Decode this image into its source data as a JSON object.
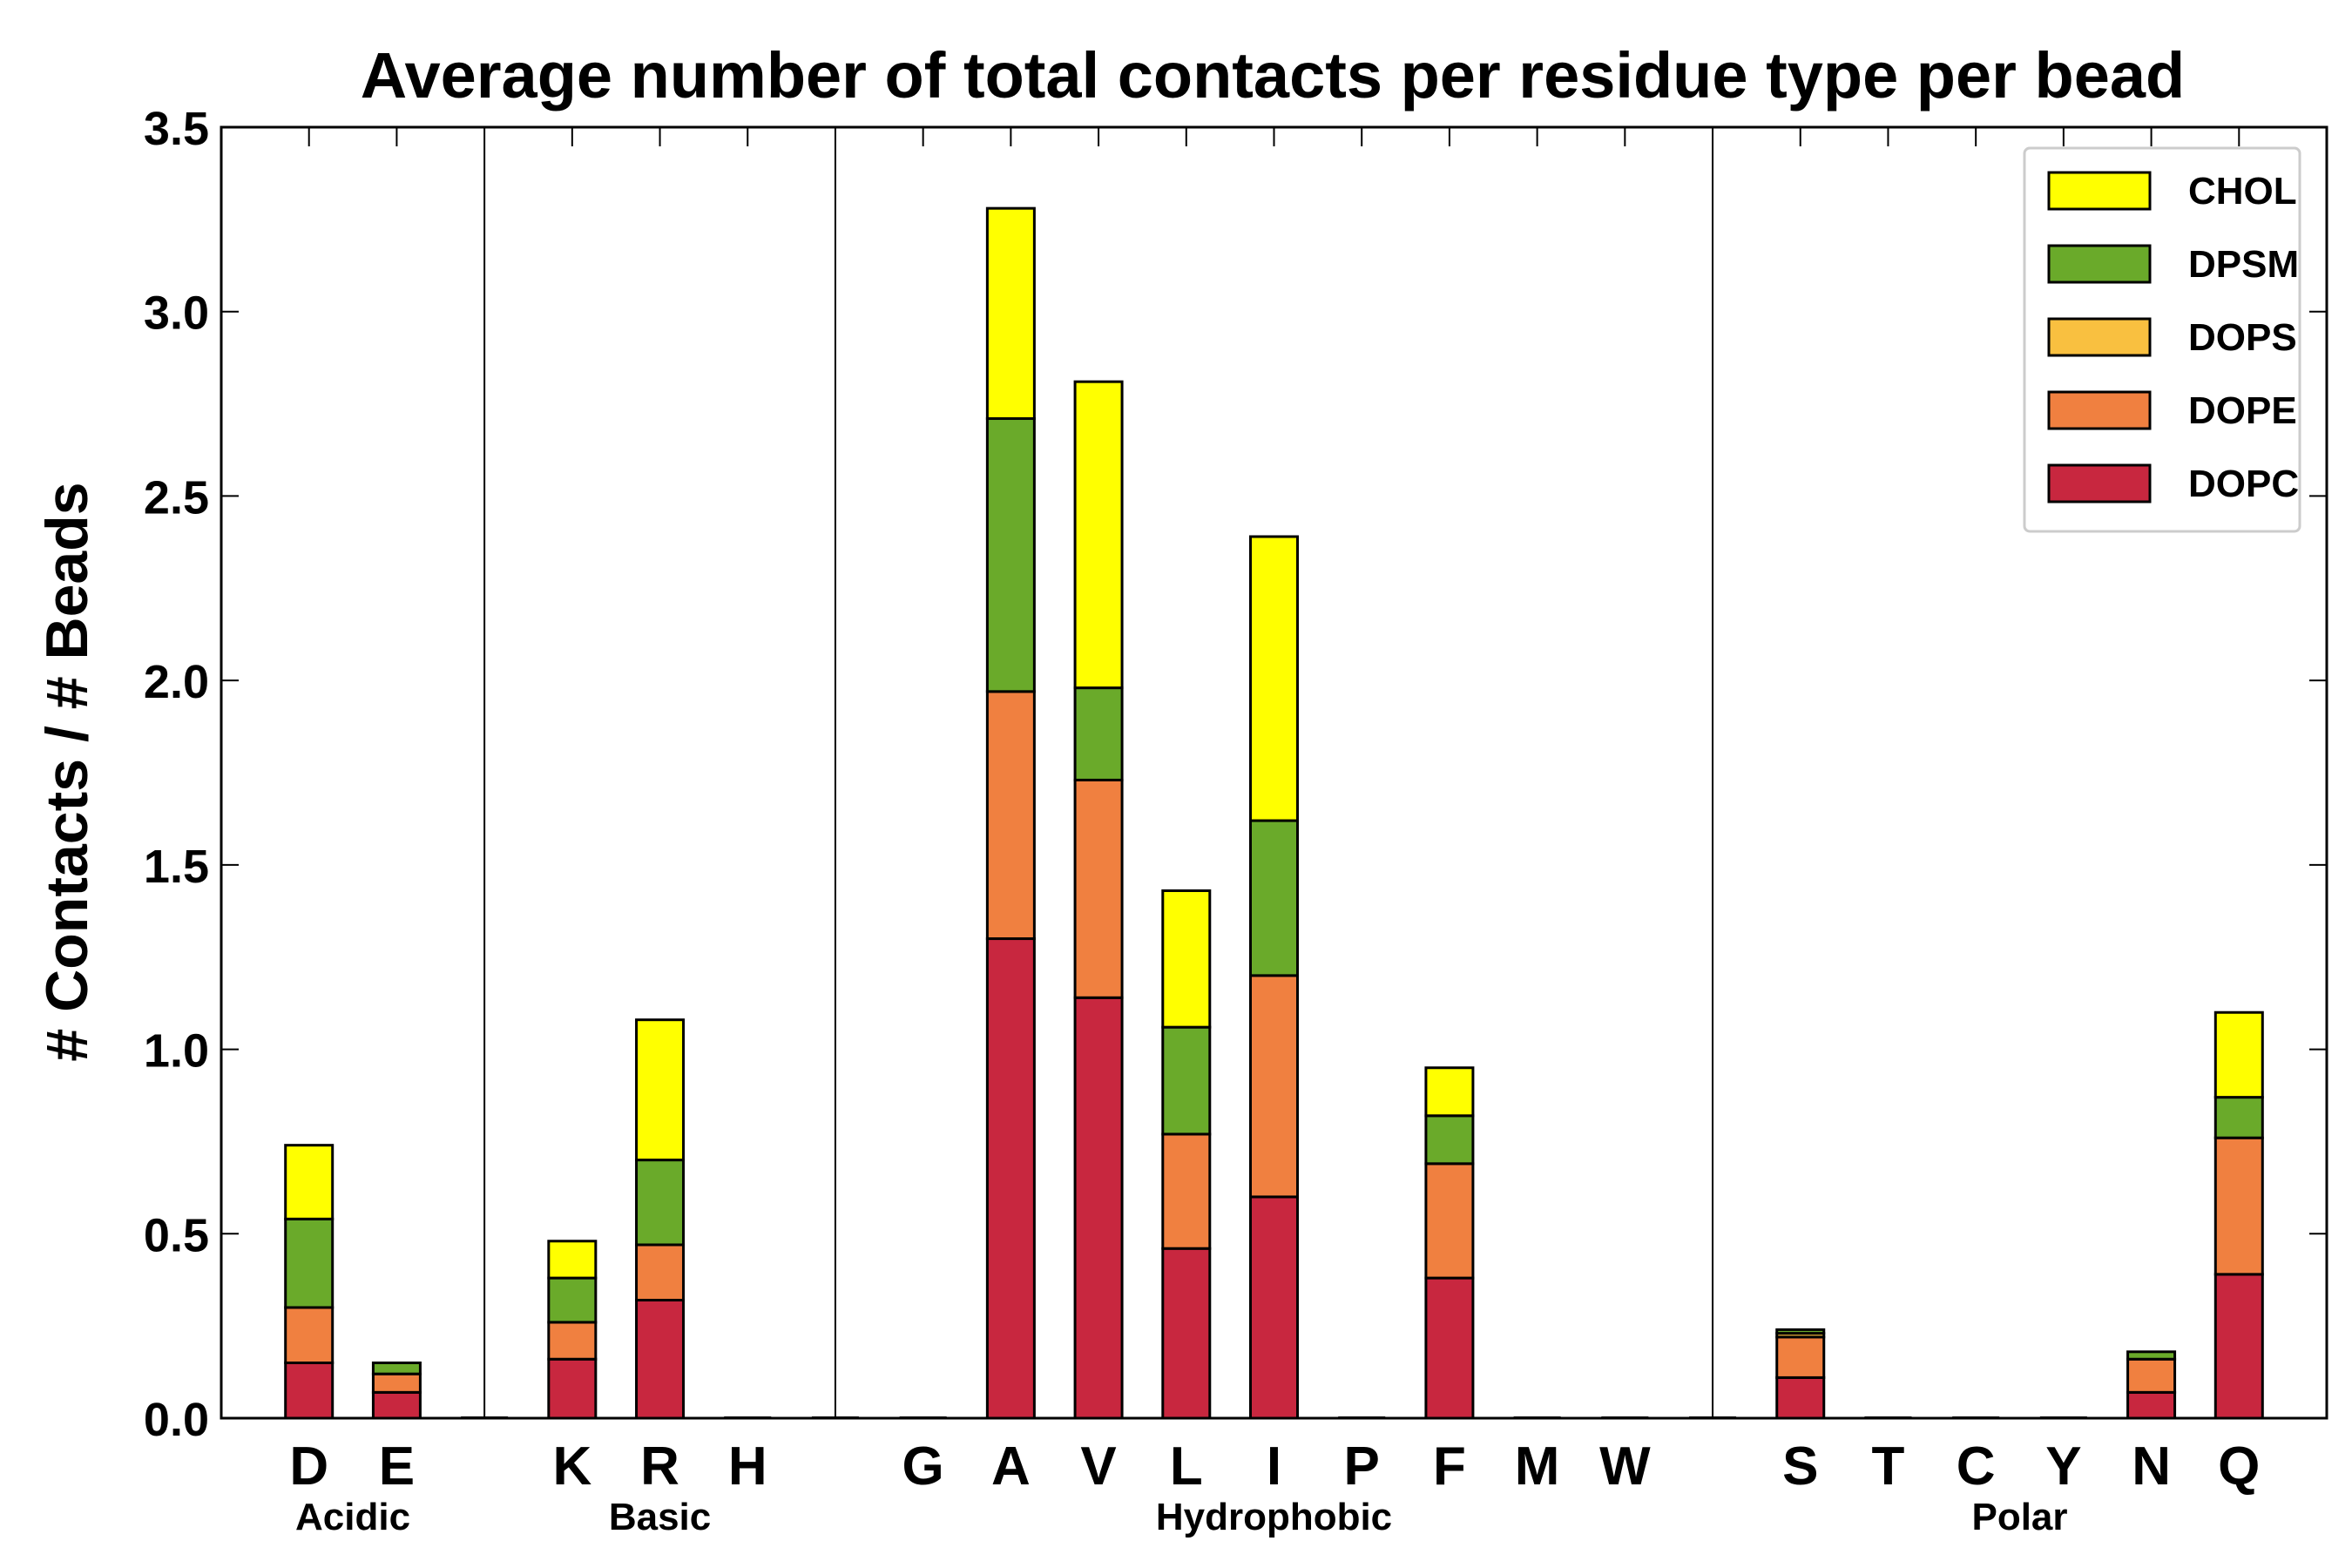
{
  "chart_data": {
    "type": "bar",
    "stacked": true,
    "title": "Average number of total contacts per residue type per bead",
    "xlabel": "",
    "ylabel": "# Contacts / # Beads",
    "ylim": [
      0,
      3.5
    ],
    "yticks": [
      "0.0",
      "0.5",
      "1.0",
      "1.5",
      "2.0",
      "2.5",
      "3.0",
      "3.5"
    ],
    "grid": false,
    "legend_position": "top-right",
    "categories": [
      "D",
      "E",
      "",
      "K",
      "R",
      "H",
      "",
      "G",
      "A",
      "V",
      "L",
      "I",
      "P",
      "F",
      "M",
      "W",
      "",
      "S",
      "T",
      "C",
      "Y",
      "N",
      "Q"
    ],
    "groups": [
      {
        "label": "Acidic",
        "start": 0,
        "end": 1
      },
      {
        "label": "Basic",
        "start": 3,
        "end": 5
      },
      {
        "label": "Hydrophobic",
        "start": 7,
        "end": 15
      },
      {
        "label": "Polar",
        "start": 17,
        "end": 22
      }
    ],
    "separators_after": [
      2,
      6,
      16
    ],
    "series": [
      {
        "name": "DOPC",
        "color": "#c8273f",
        "values": [
          0.15,
          0.07,
          0,
          0.16,
          0.32,
          0,
          0,
          0,
          1.3,
          1.14,
          0.46,
          0.6,
          0,
          0.38,
          0,
          0,
          0,
          0.11,
          0,
          0,
          0,
          0.07,
          0.39
        ]
      },
      {
        "name": "DOPE",
        "color": "#f08040",
        "values": [
          0.15,
          0.05,
          0,
          0.1,
          0.15,
          0,
          0,
          0,
          0.67,
          0.59,
          0.31,
          0.6,
          0,
          0.31,
          0,
          0,
          0,
          0.11,
          0,
          0,
          0,
          0.09,
          0.37
        ]
      },
      {
        "name": "DOPS",
        "color": "#f9c040",
        "values": [
          0,
          0,
          0,
          0,
          0,
          0,
          0,
          0,
          0,
          0,
          0,
          0,
          0,
          0,
          0,
          0,
          0,
          0.01,
          0,
          0,
          0,
          0,
          0
        ]
      },
      {
        "name": "DPSM",
        "color": "#6aaa2a",
        "values": [
          0.24,
          0.03,
          0,
          0.12,
          0.23,
          0,
          0,
          0,
          0.74,
          0.25,
          0.29,
          0.42,
          0,
          0.13,
          0,
          0,
          0,
          0.01,
          0,
          0,
          0,
          0.02,
          0.11
        ]
      },
      {
        "name": "CHOL",
        "color": "#ffff00",
        "values": [
          0.2,
          0,
          0,
          0.1,
          0.38,
          0,
          0,
          0,
          0.57,
          0.83,
          0.37,
          0.77,
          0,
          0.13,
          0,
          0,
          0,
          0,
          0,
          0,
          0,
          0,
          0.23
        ]
      }
    ],
    "legend_order": [
      "CHOL",
      "DPSM",
      "DOPS",
      "DOPE",
      "DOPC"
    ]
  }
}
